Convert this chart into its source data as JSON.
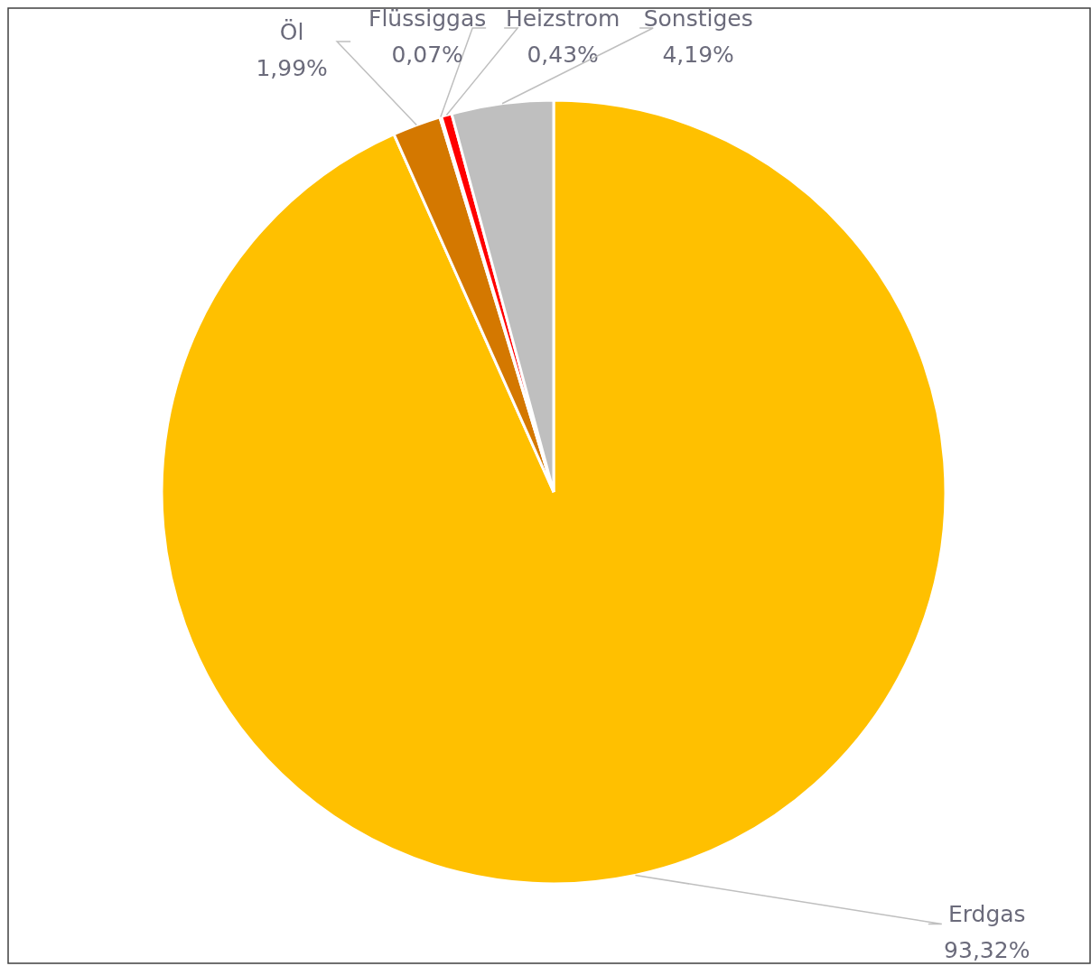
{
  "chart_data": {
    "type": "pie",
    "categories": [
      "Erdgas",
      "Öl",
      "Flüssiggas",
      "Heizstrom",
      "Sonstiges"
    ],
    "values": [
      93.32,
      1.99,
      0.07,
      0.43,
      4.19
    ],
    "colors": [
      "#ffc000",
      "#d47800",
      "#7f7f7f",
      "#ff0000",
      "#bfbfbf"
    ],
    "value_labels": [
      "93,32%",
      "1,99%",
      "0,07%",
      "0,43%",
      "4,19%"
    ],
    "legend": false
  }
}
